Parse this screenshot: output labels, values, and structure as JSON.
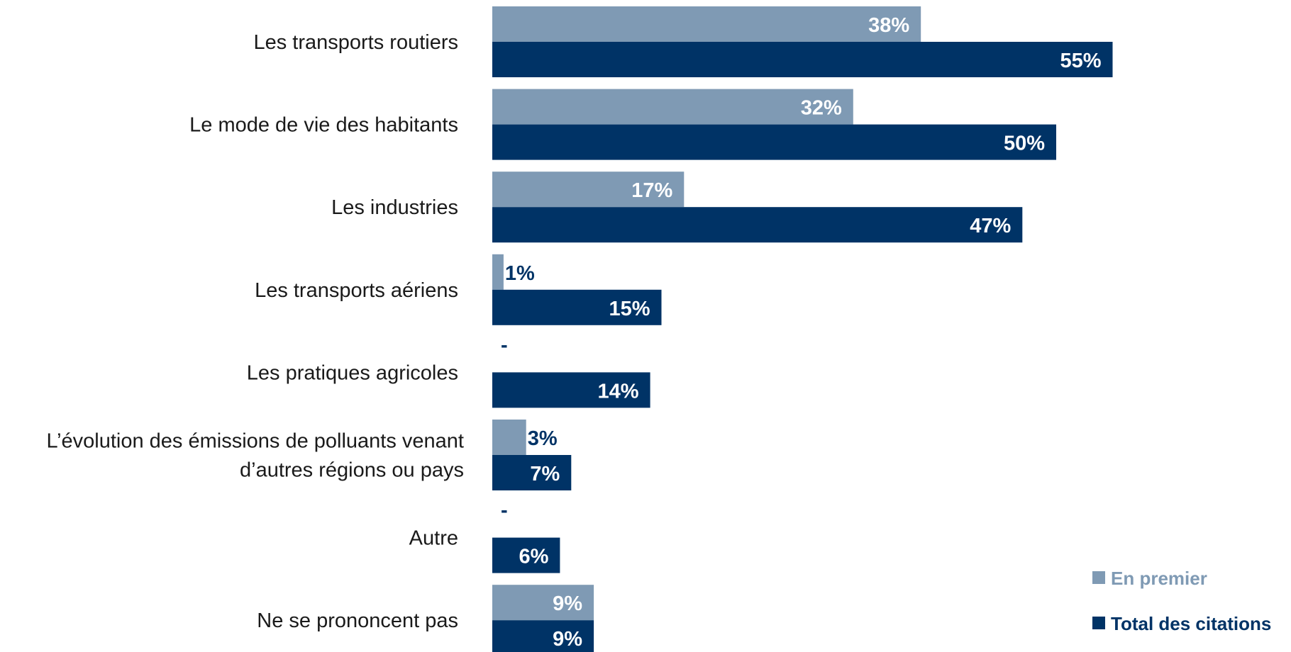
{
  "chart_data": {
    "type": "bar",
    "orientation": "horizontal",
    "categories": [
      [
        "Les transports routiers"
      ],
      [
        "Le mode de vie des habitants"
      ],
      [
        "Les industries"
      ],
      [
        "Les transports aériens"
      ],
      [
        "Les pratiques agricoles"
      ],
      [
        "L’évolution des émissions de polluants venant",
        "d’autres régions ou pays"
      ],
      [
        "Autre"
      ],
      [
        "Ne se prononcent pas"
      ]
    ],
    "series": [
      {
        "name": "En premier",
        "color": "#7f9ab4",
        "values": [
          38,
          32,
          17,
          1,
          null,
          3,
          null,
          9
        ],
        "labels": [
          "38%",
          "32%",
          "17%",
          "1%",
          "-",
          "3%",
          "-",
          "9%"
        ]
      },
      {
        "name": "Total des citations",
        "color": "#003366",
        "values": [
          55,
          50,
          47,
          15,
          14,
          7,
          6,
          9
        ],
        "labels": [
          "55%",
          "50%",
          "47%",
          "15%",
          "14%",
          "7%",
          "6%",
          "9%"
        ]
      }
    ],
    "xlim": [
      0,
      100
    ],
    "legend": "bottom-right",
    "grid": false,
    "title": "",
    "xlabel": "",
    "ylabel": ""
  }
}
